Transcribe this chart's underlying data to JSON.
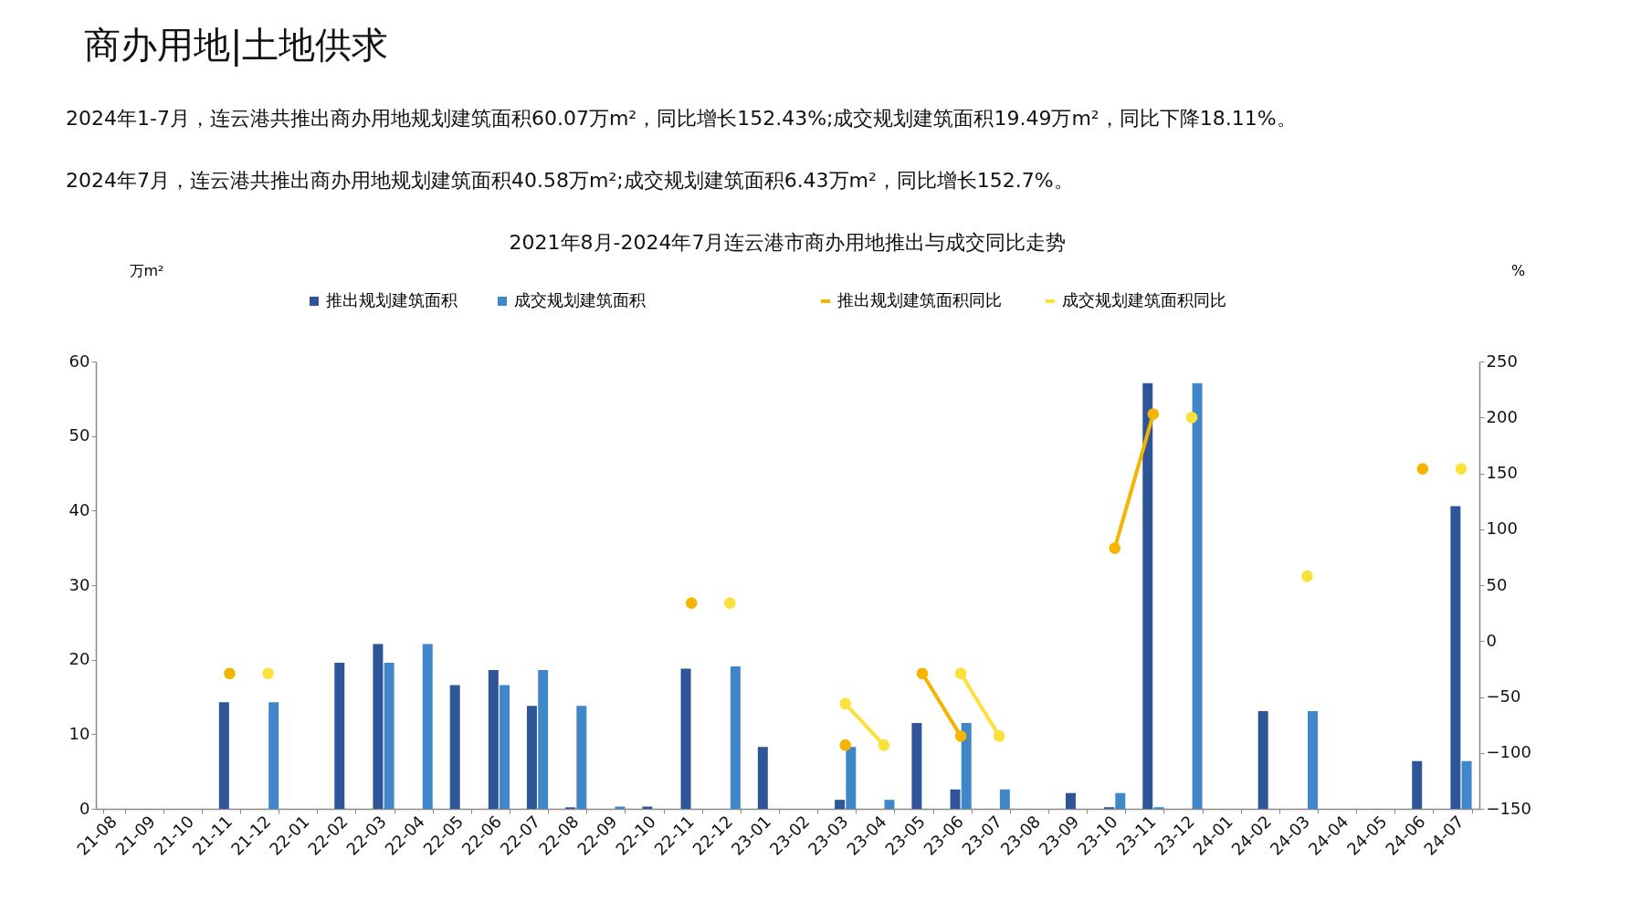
{
  "chart_data": {
    "type": "bar",
    "title": "2021年8月-2024年7月连云港市商办用地推出与成交同比走势",
    "annotations": [
      "商办用地|土地供求",
      "2024年1-7月，连云港共推出商办用地规划建筑面积60.07万m²，同比增长152.43%;成交规划建筑面积19.49万m²，同比下降18.11%。",
      "2024年7月，连云港共推出商办用地规划建筑面积40.58万m²;成交规划建筑面积6.43万m²，同比增长152.7%。"
    ],
    "ylabel": "万m²",
    "y2label": "%",
    "categories": [
      "21-08",
      "21-09",
      "21-10",
      "21-11",
      "21-12",
      "22-01",
      "22-02",
      "22-03",
      "22-04",
      "22-05",
      "22-06",
      "22-07",
      "22-08",
      "22-09",
      "22-10",
      "22-11",
      "22-12",
      "23-01",
      "23-02",
      "23-03",
      "23-04",
      "23-05",
      "23-06",
      "23-07",
      "23-08",
      "23-09",
      "23-10",
      "23-11",
      "23-12",
      "24-01",
      "24-02",
      "24-03",
      "24-04",
      "24-05",
      "24-06",
      "24-07"
    ],
    "series": [
      {
        "name": "推出规划建筑面积",
        "type": "bar",
        "color": "#2e5597",
        "values": [
          null,
          null,
          null,
          14.3,
          null,
          null,
          19.6,
          22.1,
          null,
          16.6,
          18.6,
          13.8,
          0.2,
          null,
          0.3,
          18.8,
          null,
          8.3,
          null,
          1.2,
          null,
          11.5,
          2.6,
          null,
          null,
          2.1,
          0.2,
          57.1,
          null,
          null,
          13.1,
          null,
          null,
          null,
          6.4,
          40.6
        ]
      },
      {
        "name": "成交规划建筑面积",
        "type": "bar",
        "color": "#3f87c9",
        "values": [
          null,
          null,
          null,
          null,
          14.3,
          null,
          null,
          19.6,
          22.1,
          null,
          16.6,
          18.6,
          13.8,
          0.3,
          null,
          null,
          19.1,
          null,
          null,
          8.3,
          1.2,
          null,
          11.5,
          2.6,
          null,
          null,
          2.1,
          0.2,
          57.1,
          null,
          null,
          13.1,
          null,
          null,
          null,
          6.4
        ]
      },
      {
        "name": "推出规划建筑面积同比",
        "type": "line",
        "axis": "y2",
        "color": "#f5b400",
        "values": [
          null,
          null,
          null,
          -29,
          null,
          null,
          null,
          null,
          null,
          null,
          null,
          null,
          null,
          null,
          null,
          34,
          null,
          null,
          null,
          -93,
          null,
          -29,
          -85,
          null,
          null,
          null,
          83,
          203,
          null,
          null,
          null,
          null,
          null,
          null,
          154,
          null
        ]
      },
      {
        "name": "成交规划建筑面积同比",
        "type": "line",
        "axis": "y2",
        "color": "#fce13a",
        "values": [
          null,
          null,
          null,
          null,
          -29,
          null,
          null,
          null,
          null,
          null,
          null,
          null,
          null,
          null,
          null,
          null,
          34,
          null,
          null,
          -56,
          -93,
          null,
          -29,
          -85,
          null,
          null,
          null,
          null,
          200,
          null,
          null,
          58,
          null,
          null,
          null,
          154
        ]
      }
    ],
    "ylim": [
      0,
      60
    ],
    "yticks": [
      0,
      10,
      20,
      30,
      40,
      50,
      60
    ],
    "y2lim": [
      -150,
      250
    ],
    "y2ticks": [
      -150,
      -100,
      -50,
      0,
      50,
      100,
      150,
      200,
      250
    ],
    "grid": false,
    "legend": "top",
    "marker": "circle",
    "line_style": "solid"
  }
}
